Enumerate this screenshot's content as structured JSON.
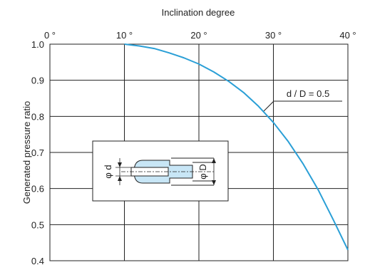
{
  "chart_data": {
    "type": "line",
    "xlabel": "Inclination degree",
    "ylabel": "Generated pressure ratio",
    "x_ticks": [
      "0 °",
      "10 °",
      "20 °",
      "30 °",
      "40 °"
    ],
    "y_ticks": [
      "1.0",
      "0.9",
      "0.8",
      "0.7",
      "0.6",
      "0.5",
      "0.4"
    ],
    "xlim": [
      0,
      40
    ],
    "ylim": [
      0.4,
      1.0
    ],
    "grid": true,
    "x_axis_position": "top",
    "series": [
      {
        "name": "d / D = 0.5",
        "color": "#2a9fd6",
        "x": [
          10,
          12,
          14,
          16,
          18,
          20,
          22,
          24,
          26,
          28,
          30,
          32,
          34,
          36,
          38,
          40
        ],
        "y": [
          1.0,
          0.995,
          0.988,
          0.976,
          0.962,
          0.945,
          0.923,
          0.897,
          0.866,
          0.828,
          0.783,
          0.73,
          0.668,
          0.597,
          0.515,
          0.43
        ]
      }
    ],
    "annotation": "d / D = 0.5",
    "inset": {
      "label_small_diameter": "φ d",
      "label_large_diameter": "φ D",
      "fill_color": "#c8e6f6"
    }
  }
}
